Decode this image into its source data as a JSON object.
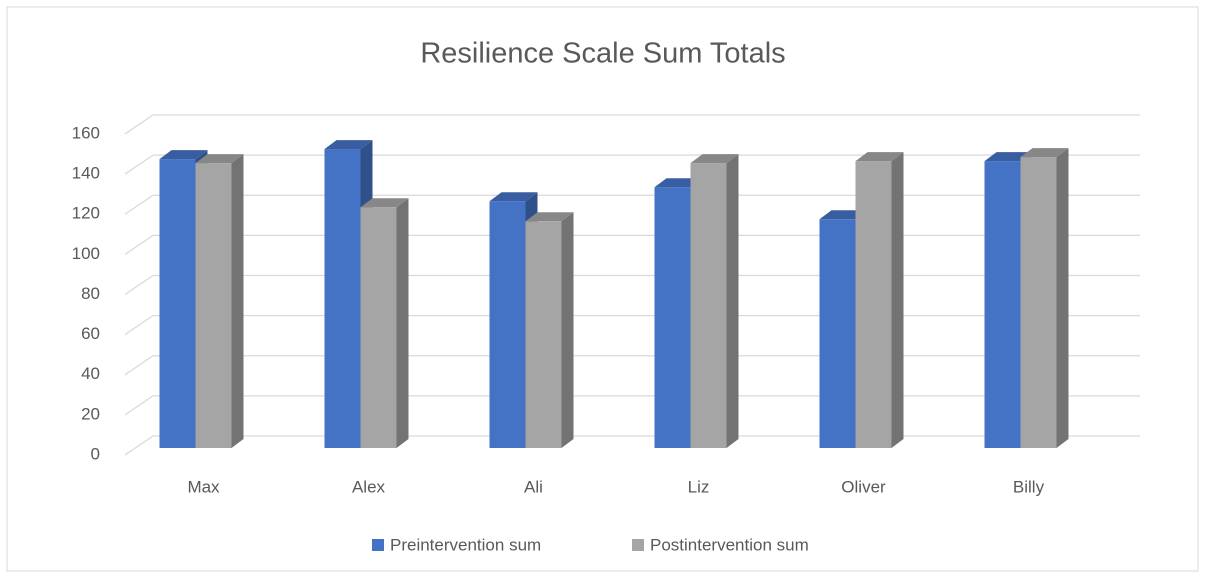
{
  "chart_data": {
    "type": "bar3d",
    "title": "Resilience Scale Sum Totals",
    "categories": [
      "Max",
      "Alex",
      "Ali",
      "Liz",
      "Oliver",
      "Billy"
    ],
    "series": [
      {
        "name": "Preintervention sum",
        "color": "#4472c4",
        "values": [
          144,
          149,
          123,
          130,
          114,
          143
        ]
      },
      {
        "name": "Postintervention sum",
        "color": "#a5a5a5",
        "values": [
          142,
          120,
          113,
          142,
          143,
          145
        ]
      }
    ],
    "ylim": [
      0,
      160
    ],
    "yticks": [
      0,
      20,
      40,
      60,
      80,
      100,
      120,
      140,
      160
    ],
    "grid": true,
    "legend": "bottom"
  }
}
